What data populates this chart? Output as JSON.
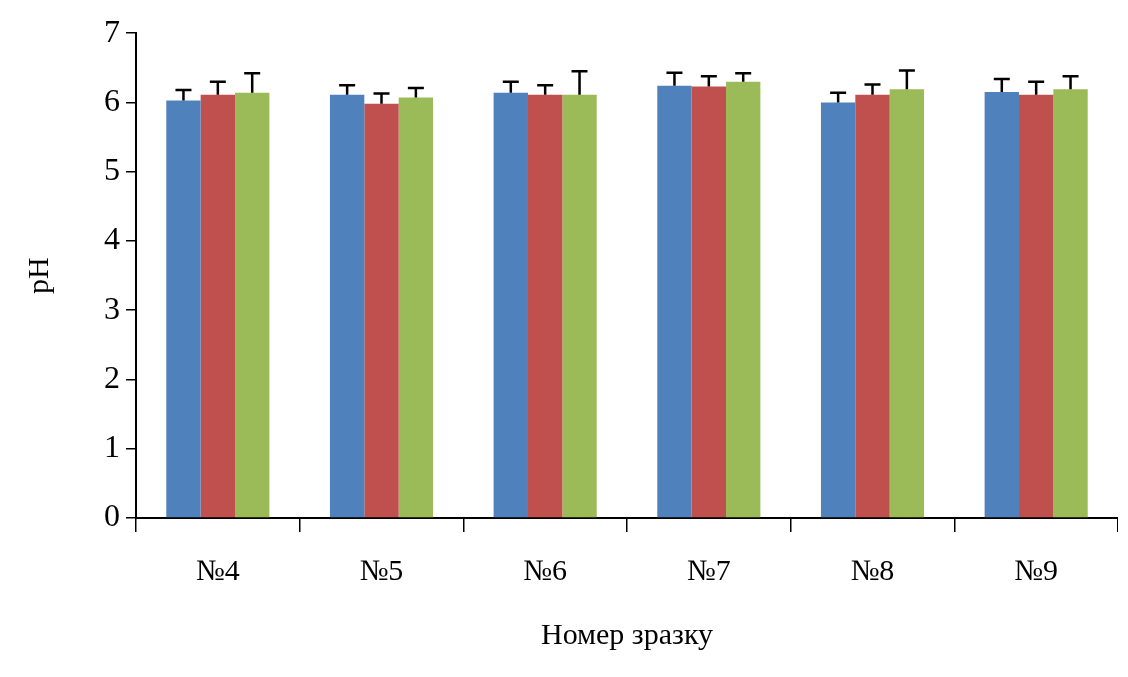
{
  "chart_data": {
    "type": "bar",
    "xlabel": "Номер зразку",
    "ylabel": "pH",
    "categories": [
      "№4",
      "№5",
      "№6",
      "№7",
      "№8",
      "№9"
    ],
    "ylim": [
      0,
      7
    ],
    "yticks": [
      0,
      1,
      2,
      3,
      4,
      5,
      6,
      7
    ],
    "grid": false,
    "legend": false,
    "series": [
      {
        "color": "#4f81bd",
        "values": [
          6.03,
          6.11,
          6.14,
          6.24,
          6.0,
          6.15
        ],
        "errors": [
          [
            6.03,
            6.18
          ],
          [
            6.11,
            6.25
          ],
          [
            6.14,
            6.3
          ],
          [
            6.24,
            6.43
          ],
          [
            6.0,
            6.14
          ],
          [
            6.15,
            6.34
          ]
        ]
      },
      {
        "color": "#c0504d",
        "values": [
          6.11,
          5.98,
          6.11,
          6.23,
          6.11,
          6.11
        ],
        "errors": [
          [
            6.11,
            6.3
          ],
          [
            5.98,
            6.13
          ],
          [
            6.11,
            6.25
          ],
          [
            6.23,
            6.38
          ],
          [
            6.11,
            6.26
          ],
          [
            6.11,
            6.3
          ]
        ]
      },
      {
        "color": "#9bbb59",
        "values": [
          6.14,
          6.07,
          6.11,
          6.3,
          6.19,
          6.19
        ],
        "errors": [
          [
            6.14,
            6.42
          ],
          [
            6.07,
            6.21
          ],
          [
            6.11,
            6.45
          ],
          [
            6.3,
            6.42
          ],
          [
            6.19,
            6.46
          ],
          [
            6.19,
            6.38
          ]
        ]
      }
    ]
  }
}
